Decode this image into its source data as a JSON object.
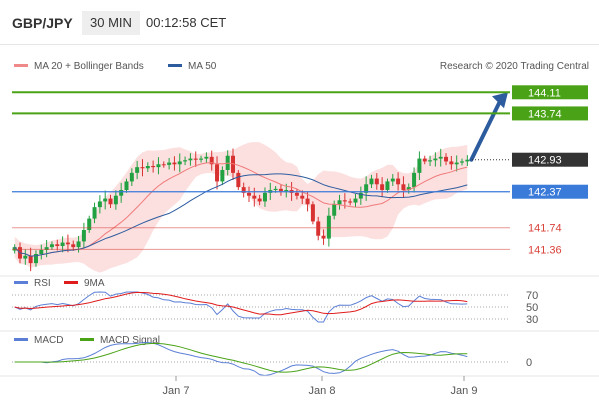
{
  "header": {
    "symbol": "GBP/JPY",
    "timeframe": "30 MIN",
    "time": "00:12:58 CET"
  },
  "chart_data": {
    "type": "candlestick",
    "symbol": "GBP/JPY",
    "legend": {
      "bollinger": "MA 20 + Bollinger Bands",
      "ma50": "MA 50",
      "rsi": "RSI",
      "rsi_ma": "9MA",
      "macd": "MACD",
      "macd_signal": "MACD Signal"
    },
    "credit": "Research © 2020 Trading Central",
    "x_ticks": [
      "Jan 7",
      "Jan 8",
      "Jan 9"
    ],
    "levels": [
      {
        "label": "144.11",
        "value": 144.11,
        "kind": "target",
        "color": "#4aa317"
      },
      {
        "label": "143.74",
        "value": 143.74,
        "kind": "target",
        "color": "#4aa317"
      },
      {
        "label": "142.93",
        "value": 142.93,
        "kind": "last",
        "color": "#333333"
      },
      {
        "label": "142.37",
        "value": 142.37,
        "kind": "pivot",
        "color": "#3a7ad9"
      },
      {
        "label": "141.74",
        "value": 141.74,
        "kind": "support",
        "color": "#d9423a"
      },
      {
        "label": "141.36",
        "value": 141.36,
        "kind": "support",
        "color": "#d9423a"
      }
    ],
    "price_range": [
      141.0,
      144.5
    ],
    "close_series": [
      141.4,
      141.2,
      141.25,
      141.12,
      141.28,
      141.35,
      141.4,
      141.45,
      141.42,
      141.48,
      141.45,
      141.4,
      141.5,
      141.7,
      141.9,
      142.1,
      142.2,
      142.25,
      142.15,
      142.3,
      142.4,
      142.55,
      142.7,
      142.8,
      142.78,
      142.82,
      142.8,
      142.85,
      142.84,
      142.88,
      142.85,
      142.9,
      142.92,
      142.95,
      142.93,
      142.95,
      142.98,
      142.85,
      142.55,
      142.75,
      143.0,
      142.7,
      142.45,
      142.35,
      142.3,
      142.25,
      142.2,
      142.35,
      142.4,
      142.42,
      142.38,
      142.4,
      142.35,
      142.3,
      142.25,
      142.15,
      141.85,
      141.6,
      141.55,
      141.95,
      142.15,
      142.22,
      142.2,
      142.18,
      142.25,
      142.35,
      142.5,
      142.6,
      142.5,
      142.4,
      142.55,
      142.6,
      142.5,
      142.4,
      142.45,
      142.7,
      142.95,
      142.9,
      142.92,
      142.95,
      142.98,
      142.9,
      142.85,
      142.88,
      142.9,
      142.93
    ],
    "rsi_levels": [
      70,
      50,
      30
    ],
    "macd_zero": "0"
  }
}
